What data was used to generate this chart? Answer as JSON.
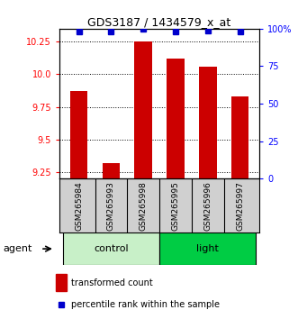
{
  "title": "GDS3187 / 1434579_x_at",
  "samples": [
    "GSM265984",
    "GSM265993",
    "GSM265998",
    "GSM265995",
    "GSM265996",
    "GSM265997"
  ],
  "bar_values": [
    9.87,
    9.32,
    10.25,
    10.12,
    10.06,
    9.83
  ],
  "percentile_values": [
    98,
    98,
    100,
    98,
    99,
    98
  ],
  "ylim_left": [
    9.2,
    10.35
  ],
  "ylim_right": [
    0,
    100
  ],
  "yticks_left": [
    9.25,
    9.5,
    9.75,
    10.0,
    10.25
  ],
  "yticks_right": [
    0,
    25,
    50,
    75,
    100
  ],
  "bar_color": "#cc0000",
  "dot_color": "#0000cc",
  "control_color": "#c8f0c8",
  "light_color": "#00cc44",
  "agent_label": "agent",
  "legend_bar_label": "transformed count",
  "legend_dot_label": "percentile rank within the sample",
  "sample_box_color": "#d0d0d0",
  "bar_width": 0.55,
  "ybase": 9.2
}
